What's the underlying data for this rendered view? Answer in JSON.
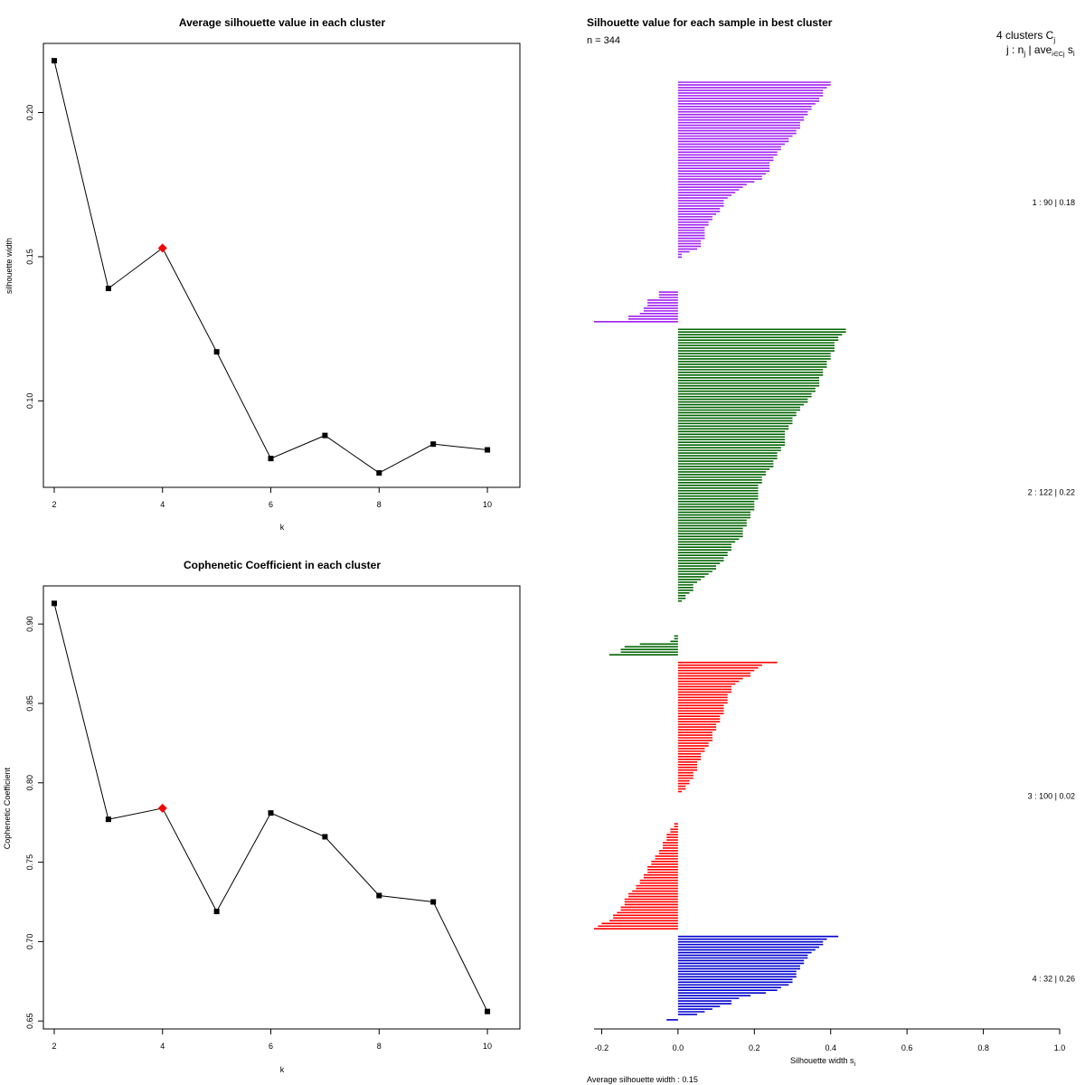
{
  "chart_data": [
    {
      "type": "line",
      "title": "Average silhouette value in each cluster",
      "xlabel": "k",
      "ylabel": "silhouette width",
      "x": [
        2,
        3,
        4,
        5,
        6,
        7,
        8,
        9,
        10
      ],
      "y": [
        0.218,
        0.139,
        0.153,
        0.117,
        0.08,
        0.088,
        0.075,
        0.085,
        0.083
      ],
      "highlight_x": 4,
      "xticks": [
        "2",
        "4",
        "6",
        "8",
        "10"
      ],
      "yticks": [
        "0.10",
        "0.15",
        "0.20"
      ],
      "xlim": [
        1.8,
        10.6
      ],
      "ylim": [
        0.07,
        0.224
      ],
      "colors": {
        "line": "#000000",
        "point": "#000000",
        "highlight": "#ff0000"
      }
    },
    {
      "type": "line",
      "title": "Cophenetic Coefficient in each cluster",
      "xlabel": "k",
      "ylabel": "Cophenetic Coefficient",
      "x": [
        2,
        3,
        4,
        5,
        6,
        7,
        8,
        9,
        10
      ],
      "y": [
        0.913,
        0.777,
        0.784,
        0.719,
        0.781,
        0.766,
        0.729,
        0.725,
        0.656
      ],
      "highlight_x": 4,
      "xticks": [
        "2",
        "4",
        "6",
        "8",
        "10"
      ],
      "yticks": [
        "0.65",
        "0.70",
        "0.75",
        "0.80",
        "0.85",
        "0.90"
      ],
      "xlim": [
        1.8,
        10.6
      ],
      "ylim": [
        0.645,
        0.924
      ],
      "colors": {
        "line": "#000000",
        "point": "#000000",
        "highlight": "#ff0000"
      }
    },
    {
      "type": "bar",
      "orientation": "horizontal",
      "title": "Silhouette value for each sample in best cluster",
      "n_label": "n = 344",
      "xlabel": "Silhouette width s",
      "xlabel_sub": "i",
      "footer": "Average silhouette width :  0.15",
      "xticks": [
        "-0.2",
        "0.0",
        "0.2",
        "0.4",
        "0.6",
        "0.8",
        "1.0"
      ],
      "xlim": [
        -0.22,
        1.0
      ],
      "header_line1": "4  clusters  C",
      "header_line1_sub": "j",
      "header_line2": "j :  n",
      "header_line2_sub": "j",
      "header_line2_mid": " | ave",
      "header_line2_sub2": "i∈Cj",
      "header_line2_end": "  s",
      "header_line2_sub3": "i",
      "clusters": [
        {
          "id": 1,
          "n": 90,
          "avg": 0.18,
          "label": "1 :   90   |  0.18",
          "color": "#a020f0",
          "values": [
            0.4,
            0.4,
            0.39,
            0.38,
            0.38,
            0.38,
            0.37,
            0.37,
            0.36,
            0.35,
            0.35,
            0.34,
            0.34,
            0.33,
            0.33,
            0.32,
            0.32,
            0.32,
            0.31,
            0.31,
            0.3,
            0.29,
            0.29,
            0.28,
            0.27,
            0.27,
            0.26,
            0.26,
            0.25,
            0.25,
            0.24,
            0.24,
            0.24,
            0.24,
            0.23,
            0.22,
            0.22,
            0.2,
            0.18,
            0.17,
            0.16,
            0.15,
            0.14,
            0.13,
            0.12,
            0.12,
            0.12,
            0.11,
            0.11,
            0.1,
            0.09,
            0.09,
            0.08,
            0.08,
            0.07,
            0.07,
            0.07,
            0.07,
            0.07,
            0.06,
            0.06,
            0.06,
            0.05,
            0.03,
            0.01,
            0.01,
            0.0,
            0.0,
            0.0,
            0.0,
            0.0,
            0.0,
            0.0,
            0.0,
            0.0,
            0.0,
            0.0,
            0.0,
            -0.05,
            -0.05,
            -0.05,
            -0.08,
            -0.08,
            -0.08,
            -0.09,
            -0.09,
            -0.1,
            -0.13,
            -0.13,
            -0.22
          ]
        },
        {
          "id": 2,
          "n": 122,
          "avg": 0.22,
          "label": "2 :   122   |  0.22",
          "color": "#006400",
          "values": [
            0.44,
            0.44,
            0.43,
            0.42,
            0.42,
            0.41,
            0.41,
            0.41,
            0.41,
            0.4,
            0.4,
            0.4,
            0.39,
            0.39,
            0.39,
            0.38,
            0.38,
            0.38,
            0.37,
            0.37,
            0.37,
            0.37,
            0.36,
            0.36,
            0.35,
            0.35,
            0.34,
            0.34,
            0.33,
            0.32,
            0.32,
            0.31,
            0.31,
            0.3,
            0.3,
            0.3,
            0.29,
            0.29,
            0.28,
            0.28,
            0.28,
            0.28,
            0.28,
            0.28,
            0.27,
            0.27,
            0.26,
            0.26,
            0.26,
            0.25,
            0.25,
            0.25,
            0.24,
            0.23,
            0.23,
            0.22,
            0.22,
            0.22,
            0.21,
            0.21,
            0.21,
            0.21,
            0.21,
            0.21,
            0.2,
            0.2,
            0.2,
            0.2,
            0.19,
            0.19,
            0.19,
            0.18,
            0.18,
            0.18,
            0.17,
            0.17,
            0.17,
            0.17,
            0.16,
            0.15,
            0.14,
            0.14,
            0.14,
            0.13,
            0.13,
            0.12,
            0.12,
            0.11,
            0.1,
            0.1,
            0.09,
            0.08,
            0.07,
            0.06,
            0.05,
            0.04,
            0.04,
            0.04,
            0.03,
            0.02,
            0.02,
            0.01,
            0.0,
            0.0,
            0.0,
            0.0,
            0.0,
            0.0,
            0.0,
            0.0,
            0.0,
            0.0,
            0.0,
            0.0,
            -0.01,
            -0.01,
            -0.02,
            -0.1,
            -0.14,
            -0.15,
            -0.15,
            -0.18
          ]
        },
        {
          "id": 3,
          "n": 100,
          "avg": 0.02,
          "label": "3 :   100   |  0.02",
          "color": "#ff0000",
          "values": [
            0.26,
            0.22,
            0.21,
            0.2,
            0.19,
            0.19,
            0.17,
            0.16,
            0.15,
            0.14,
            0.14,
            0.14,
            0.13,
            0.13,
            0.13,
            0.13,
            0.12,
            0.12,
            0.12,
            0.12,
            0.11,
            0.11,
            0.11,
            0.1,
            0.1,
            0.1,
            0.09,
            0.09,
            0.09,
            0.09,
            0.08,
            0.08,
            0.07,
            0.07,
            0.06,
            0.06,
            0.06,
            0.05,
            0.05,
            0.05,
            0.05,
            0.04,
            0.04,
            0.04,
            0.03,
            0.03,
            0.02,
            0.02,
            0.01,
            0.0,
            0.0,
            0.0,
            0.0,
            0.0,
            0.0,
            0.0,
            0.0,
            0.0,
            0.0,
            0.0,
            -0.01,
            -0.01,
            -0.02,
            -0.02,
            -0.03,
            -0.03,
            -0.03,
            -0.04,
            -0.04,
            -0.04,
            -0.05,
            -0.05,
            -0.06,
            -0.06,
            -0.07,
            -0.07,
            -0.08,
            -0.08,
            -0.08,
            -0.09,
            -0.09,
            -0.1,
            -0.1,
            -0.11,
            -0.11,
            -0.12,
            -0.13,
            -0.13,
            -0.14,
            -0.14,
            -0.14,
            -0.15,
            -0.15,
            -0.16,
            -0.17,
            -0.17,
            -0.18,
            -0.2,
            -0.21,
            -0.22
          ]
        },
        {
          "id": 4,
          "n": 32,
          "avg": 0.26,
          "label": "4 :   32   |  0.26",
          "color": "#0000cd",
          "values": [
            0.42,
            0.39,
            0.38,
            0.38,
            0.37,
            0.36,
            0.35,
            0.34,
            0.34,
            0.33,
            0.33,
            0.32,
            0.32,
            0.31,
            0.31,
            0.31,
            0.3,
            0.3,
            0.29,
            0.27,
            0.26,
            0.23,
            0.19,
            0.16,
            0.14,
            0.14,
            0.11,
            0.09,
            0.07,
            0.05,
            0.0,
            -0.03
          ]
        }
      ]
    }
  ]
}
